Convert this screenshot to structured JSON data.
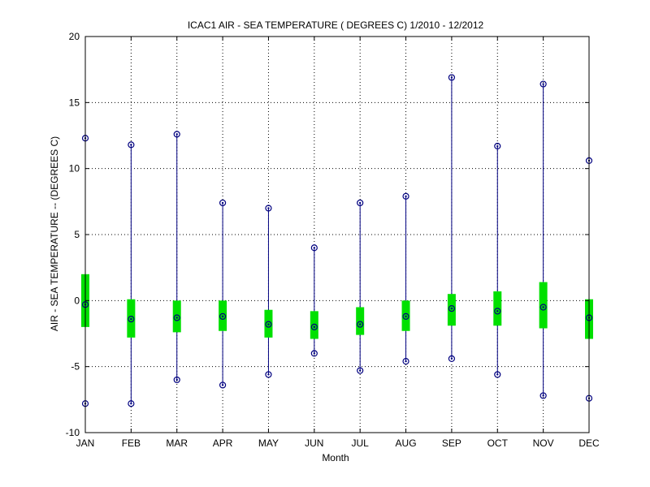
{
  "chart_data": {
    "type": "box",
    "title": "ICAC1  AIR - SEA TEMPERATURE ( DEGREES C) 1/2010 - 12/2012",
    "xlabel": "Month",
    "ylabel": "AIR - SEA TEMPERATURE -- (DEGREES C)",
    "ylim": [
      -10,
      20
    ],
    "yticks": [
      -10,
      -5,
      0,
      5,
      10,
      15,
      20
    ],
    "grid": true,
    "categories": [
      "JAN",
      "FEB",
      "MAR",
      "APR",
      "MAY",
      "JUN",
      "JUL",
      "AUG",
      "SEP",
      "OCT",
      "NOV",
      "DEC"
    ],
    "max": [
      12.3,
      11.8,
      12.6,
      7.4,
      7.0,
      4.0,
      7.4,
      7.9,
      16.9,
      11.7,
      16.4,
      10.6
    ],
    "q3": [
      2.0,
      0.1,
      0.0,
      0.0,
      -0.7,
      -0.8,
      -0.5,
      0.0,
      0.5,
      0.7,
      1.4,
      0.1
    ],
    "median": [
      -0.3,
      -1.4,
      -1.3,
      -1.2,
      -1.8,
      -2.0,
      -1.8,
      -1.2,
      -0.6,
      -0.8,
      -0.5,
      -1.3
    ],
    "q1": [
      -2.0,
      -2.8,
      -2.4,
      -2.3,
      -2.8,
      -2.9,
      -2.6,
      -2.3,
      -1.9,
      -1.9,
      -2.1,
      -2.9
    ],
    "min": [
      -7.8,
      -7.8,
      -6.0,
      -6.4,
      -5.6,
      -4.0,
      -5.3,
      -4.6,
      -4.4,
      -5.6,
      -7.2,
      -7.4
    ],
    "colors": {
      "whisker": "#000080",
      "box": "#00e000",
      "marker": "#000080",
      "grid": "#000000"
    }
  }
}
